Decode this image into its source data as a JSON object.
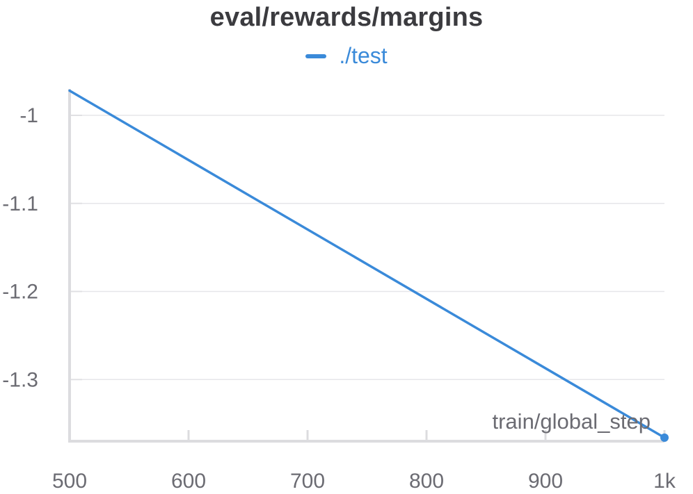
{
  "chart_data": {
    "type": "line",
    "title": "eval/rewards/margins",
    "xlabel": "train/global_step",
    "ylabel": "",
    "xlim": [
      500,
      1000
    ],
    "ylim": [
      -1.37,
      -0.97
    ],
    "x_ticks": [
      500,
      600,
      700,
      800,
      900,
      1000
    ],
    "x_tick_labels": [
      "500",
      "600",
      "700",
      "800",
      "900",
      "1k"
    ],
    "y_ticks": [
      -1.0,
      -1.1,
      -1.2,
      -1.3
    ],
    "y_tick_labels": [
      "-1",
      "-1.1",
      "-1.2",
      "-1.3"
    ],
    "grid": true,
    "legend_position": "top-center",
    "series": [
      {
        "name": "./test",
        "color": "#3a8ad9",
        "x": [
          500,
          1000
        ],
        "y": [
          -0.972,
          -1.366
        ]
      }
    ]
  }
}
